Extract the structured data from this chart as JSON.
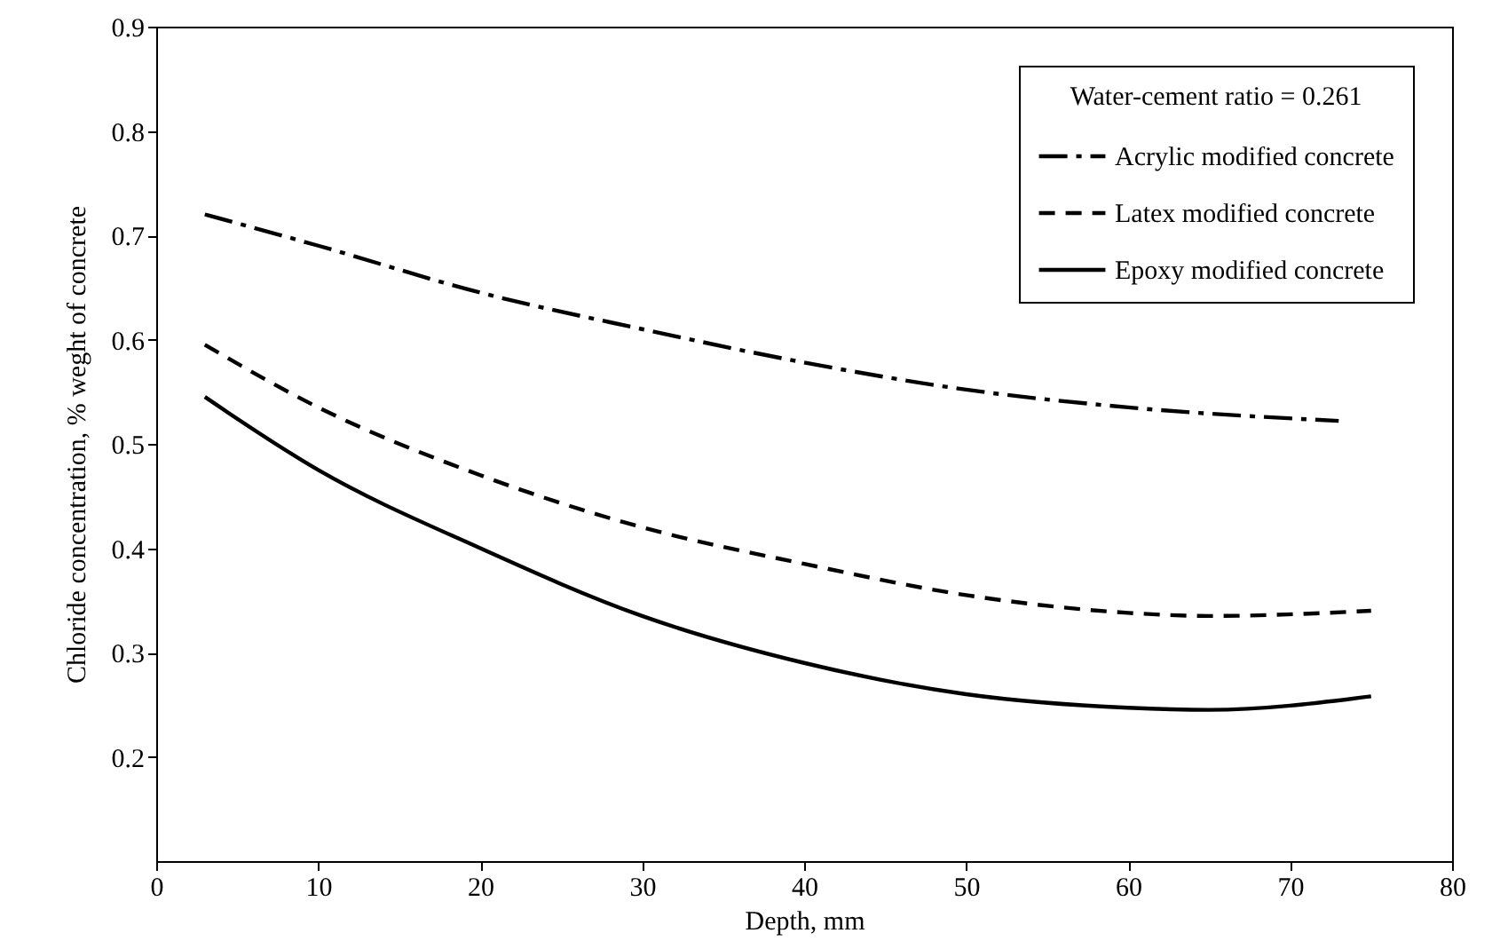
{
  "chart_data": {
    "type": "line",
    "xlabel": "Depth, mm",
    "ylabel": "Chloride  concentration, % weght of concrete",
    "legend_title": "Water-cement ratio = 0.261",
    "legend": "top right",
    "grid": false,
    "xlim": [
      0,
      80
    ],
    "xticks": [
      0,
      10,
      20,
      30,
      40,
      50,
      60,
      70,
      80
    ],
    "ylim": [
      0.1,
      0.9
    ],
    "yticks": [
      0.2,
      0.3,
      0.4,
      0.5,
      0.6,
      0.7,
      0.8,
      0.9
    ],
    "series": [
      {
        "name": "Acrylic modified concrete",
        "color": "#000000",
        "line_style": "dashdot",
        "x": [
          3,
          10,
          20,
          30,
          40,
          50,
          60,
          73
        ],
        "values": [
          0.72,
          0.69,
          0.645,
          0.61,
          0.578,
          0.552,
          0.535,
          0.522
        ]
      },
      {
        "name": "Latex modified concrete",
        "color": "#000000",
        "line_style": "dashed",
        "x": [
          3,
          10,
          20,
          30,
          40,
          50,
          60,
          65,
          75
        ],
        "values": [
          0.595,
          0.535,
          0.47,
          0.42,
          0.385,
          0.355,
          0.338,
          0.335,
          0.34
        ]
      },
      {
        "name": "Epoxy modified concrete",
        "color": "#000000",
        "line_style": "solid",
        "x": [
          3,
          10,
          20,
          30,
          40,
          50,
          60,
          65,
          75
        ],
        "values": [
          0.545,
          0.475,
          0.4,
          0.335,
          0.29,
          0.26,
          0.247,
          0.245,
          0.258
        ]
      }
    ]
  }
}
